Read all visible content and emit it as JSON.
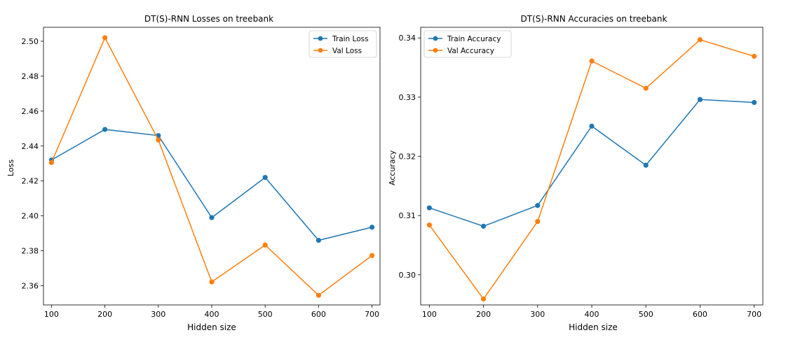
{
  "chart_data": [
    {
      "type": "line",
      "title": "DT(S)-RNN Losses on treebank",
      "xlabel": "Hidden size",
      "ylabel": "Loss",
      "x": [
        100,
        200,
        300,
        400,
        500,
        600,
        700
      ],
      "xticks": [
        "100",
        "200",
        "300",
        "400",
        "500",
        "600",
        "700"
      ],
      "yticks": [
        "2.36",
        "2.38",
        "2.40",
        "2.42",
        "2.44",
        "2.46",
        "2.48",
        "2.50"
      ],
      "ylim": [
        2.349,
        2.508
      ],
      "legend_position": "top-right",
      "grid": false,
      "series": [
        {
          "name": "Train Loss",
          "color": "#1f77b4",
          "values": [
            2.432,
            2.4495,
            2.446,
            2.399,
            2.422,
            2.386,
            2.3935
          ]
        },
        {
          "name": "Val Loss",
          "color": "#ff7f0e",
          "values": [
            2.4305,
            2.502,
            2.4435,
            2.3622,
            2.3833,
            2.3545,
            2.3773
          ]
        }
      ]
    },
    {
      "type": "line",
      "title": "DT(S)-RNN Accuracies on treebank",
      "xlabel": "Hidden size",
      "ylabel": "Accuracy",
      "x": [
        100,
        200,
        300,
        400,
        500,
        600,
        700
      ],
      "xticks": [
        "100",
        "200",
        "300",
        "400",
        "500",
        "600",
        "700"
      ],
      "yticks": [
        "0.30",
        "0.31",
        "0.32",
        "0.33",
        "0.34"
      ],
      "ylim": [
        0.2949,
        0.3418
      ],
      "legend_position": "top-left",
      "grid": false,
      "series": [
        {
          "name": "Train Accuracy",
          "color": "#1f77b4",
          "values": [
            0.3113,
            0.3082,
            0.3117,
            0.3251,
            0.3185,
            0.3296,
            0.3291
          ]
        },
        {
          "name": "Val Accuracy",
          "color": "#ff7f0e",
          "values": [
            0.3084,
            0.2959,
            0.309,
            0.3361,
            0.3315,
            0.3397,
            0.3369
          ]
        }
      ]
    }
  ]
}
